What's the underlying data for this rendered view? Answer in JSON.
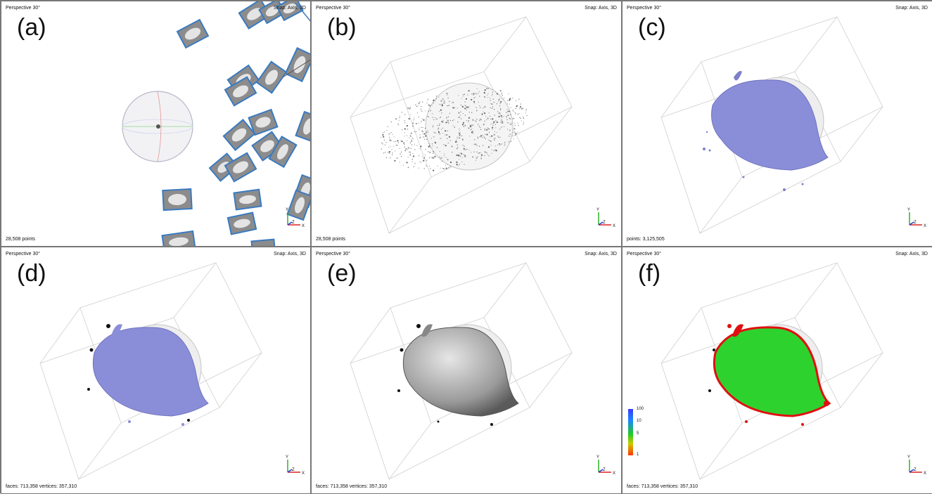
{
  "panels": [
    {
      "letter": "(a)",
      "view_label": "Perspective 30°",
      "snap_label": "Snap: Axis, 3D",
      "status": "28,508 points"
    },
    {
      "letter": "(b)",
      "view_label": "Perspective 30°",
      "snap_label": "Snap: Axis, 3D",
      "status": "28,508 points"
    },
    {
      "letter": "(c)",
      "view_label": "Perspective 30°",
      "snap_label": "Snap: Axis, 3D",
      "status": "points: 3,125,505"
    },
    {
      "letter": "(d)",
      "view_label": "Perspective 30°",
      "snap_label": "Snap: Axis, 3D",
      "status": "faces: 713,358 vertices: 357,310"
    },
    {
      "letter": "(e)",
      "view_label": "Perspective 30°",
      "snap_label": "Snap: Axis, 3D",
      "status": "faces: 713,358 vertices: 357,310"
    },
    {
      "letter": "(f)",
      "view_label": "Perspective 30°",
      "snap_label": "Snap: Axis, 3D",
      "status": "faces: 713,358 vertices: 357,310"
    }
  ],
  "axes": {
    "x": "X",
    "y": "Y",
    "z": "Z"
  },
  "colorbar": {
    "labels": [
      "100",
      "10",
      "5",
      "1"
    ],
    "colors": [
      "#3a3aff",
      "#22cc22",
      "#ff3300"
    ]
  },
  "colors": {
    "mesh_blue": "#8a8ed8",
    "mesh_gray": "#9a9a9a",
    "mesh_green": "#2ed22e",
    "deviation_red": "#e01010",
    "camera_frame": "#3a7ac0"
  }
}
